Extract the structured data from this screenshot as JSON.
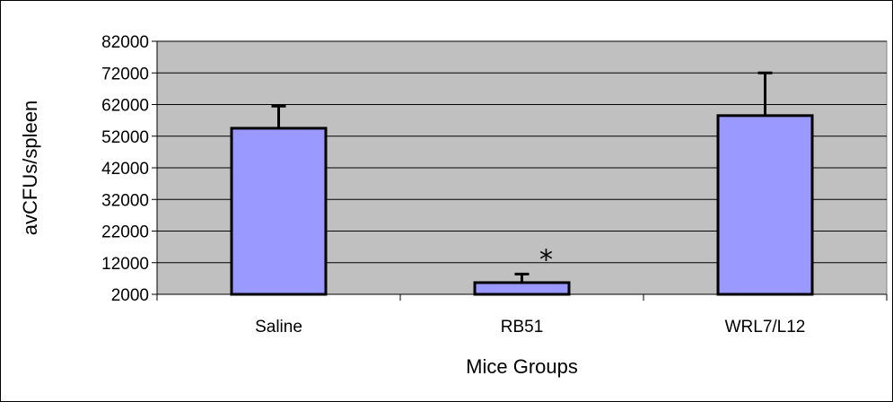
{
  "chart_data": {
    "type": "bar",
    "title": "",
    "xlabel": "Mice Groups",
    "ylabel": "avCFUs/spleen",
    "categories": [
      "Saline",
      "RB51",
      "WRL7/L12"
    ],
    "values": [
      54500,
      5700,
      58500
    ],
    "error_upper": [
      61500,
      8400,
      72000
    ],
    "ylim": [
      2000,
      82000
    ],
    "yticks": [
      2000,
      12000,
      22000,
      32000,
      42000,
      52000,
      62000,
      72000,
      82000
    ],
    "grid": true,
    "annotations": [
      {
        "category": "RB51",
        "text": "*"
      }
    ],
    "colors": {
      "bar": "#9999ff",
      "plot_bg": "#c0c0c0",
      "grid": "#000000"
    }
  }
}
